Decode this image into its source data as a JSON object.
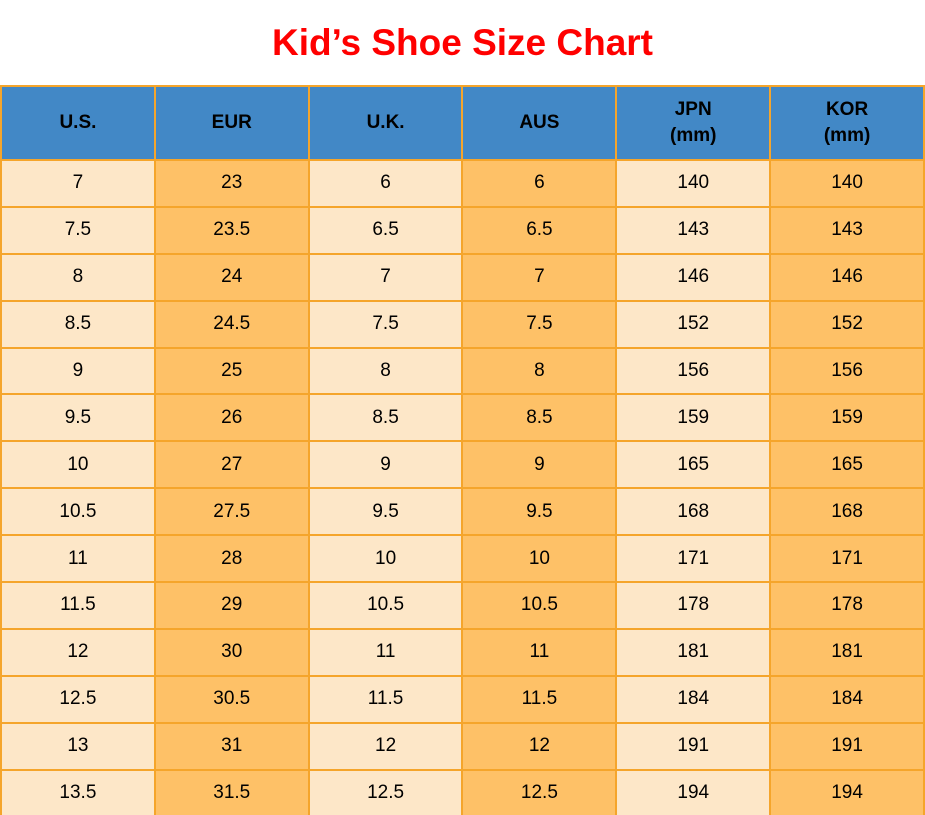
{
  "title": {
    "text": "Kid’s Shoe Size Chart",
    "color": "#FF0000"
  },
  "chart_data": {
    "type": "table",
    "title": "Kid’s Shoe Size Chart",
    "columns": [
      {
        "label": "U.S.",
        "sub": ""
      },
      {
        "label": "EUR",
        "sub": ""
      },
      {
        "label": "U.K.",
        "sub": ""
      },
      {
        "label": "AUS",
        "sub": ""
      },
      {
        "label": "JPN",
        "sub": "(mm)"
      },
      {
        "label": "KOR",
        "sub": "(mm)"
      }
    ],
    "rows": [
      [
        "7",
        "23",
        "6",
        "6",
        "140",
        "140"
      ],
      [
        "7.5",
        "23.5",
        "6.5",
        "6.5",
        "143",
        "143"
      ],
      [
        "8",
        "24",
        "7",
        "7",
        "146",
        "146"
      ],
      [
        "8.5",
        "24.5",
        "7.5",
        "7.5",
        "152",
        "152"
      ],
      [
        "9",
        "25",
        "8",
        "8",
        "156",
        "156"
      ],
      [
        "9.5",
        "26",
        "8.5",
        "8.5",
        "159",
        "159"
      ],
      [
        "10",
        "27",
        "9",
        "9",
        "165",
        "165"
      ],
      [
        "10.5",
        "27.5",
        "9.5",
        "9.5",
        "168",
        "168"
      ],
      [
        "11",
        "28",
        "10",
        "10",
        "171",
        "171"
      ],
      [
        "11.5",
        "29",
        "10.5",
        "10.5",
        "178",
        "178"
      ],
      [
        "12",
        "30",
        "11",
        "11",
        "181",
        "181"
      ],
      [
        "12.5",
        "30.5",
        "11.5",
        "11.5",
        "184",
        "184"
      ],
      [
        "13",
        "31",
        "12",
        "12",
        "191",
        "191"
      ],
      [
        "13.5",
        "31.5",
        "12.5",
        "12.5",
        "194",
        "194"
      ]
    ],
    "layout": {
      "column_color_pattern": [
        "cream",
        "orange",
        "cream",
        "orange",
        "cream",
        "orange"
      ]
    },
    "colors": {
      "header_bg": "#4288C6",
      "cream_cell_bg": "#FDE7C8",
      "orange_cell_bg": "#FEC167",
      "grid_border": "#F5A52B",
      "title_text": "#FF0000",
      "cell_text": "#000000"
    }
  }
}
